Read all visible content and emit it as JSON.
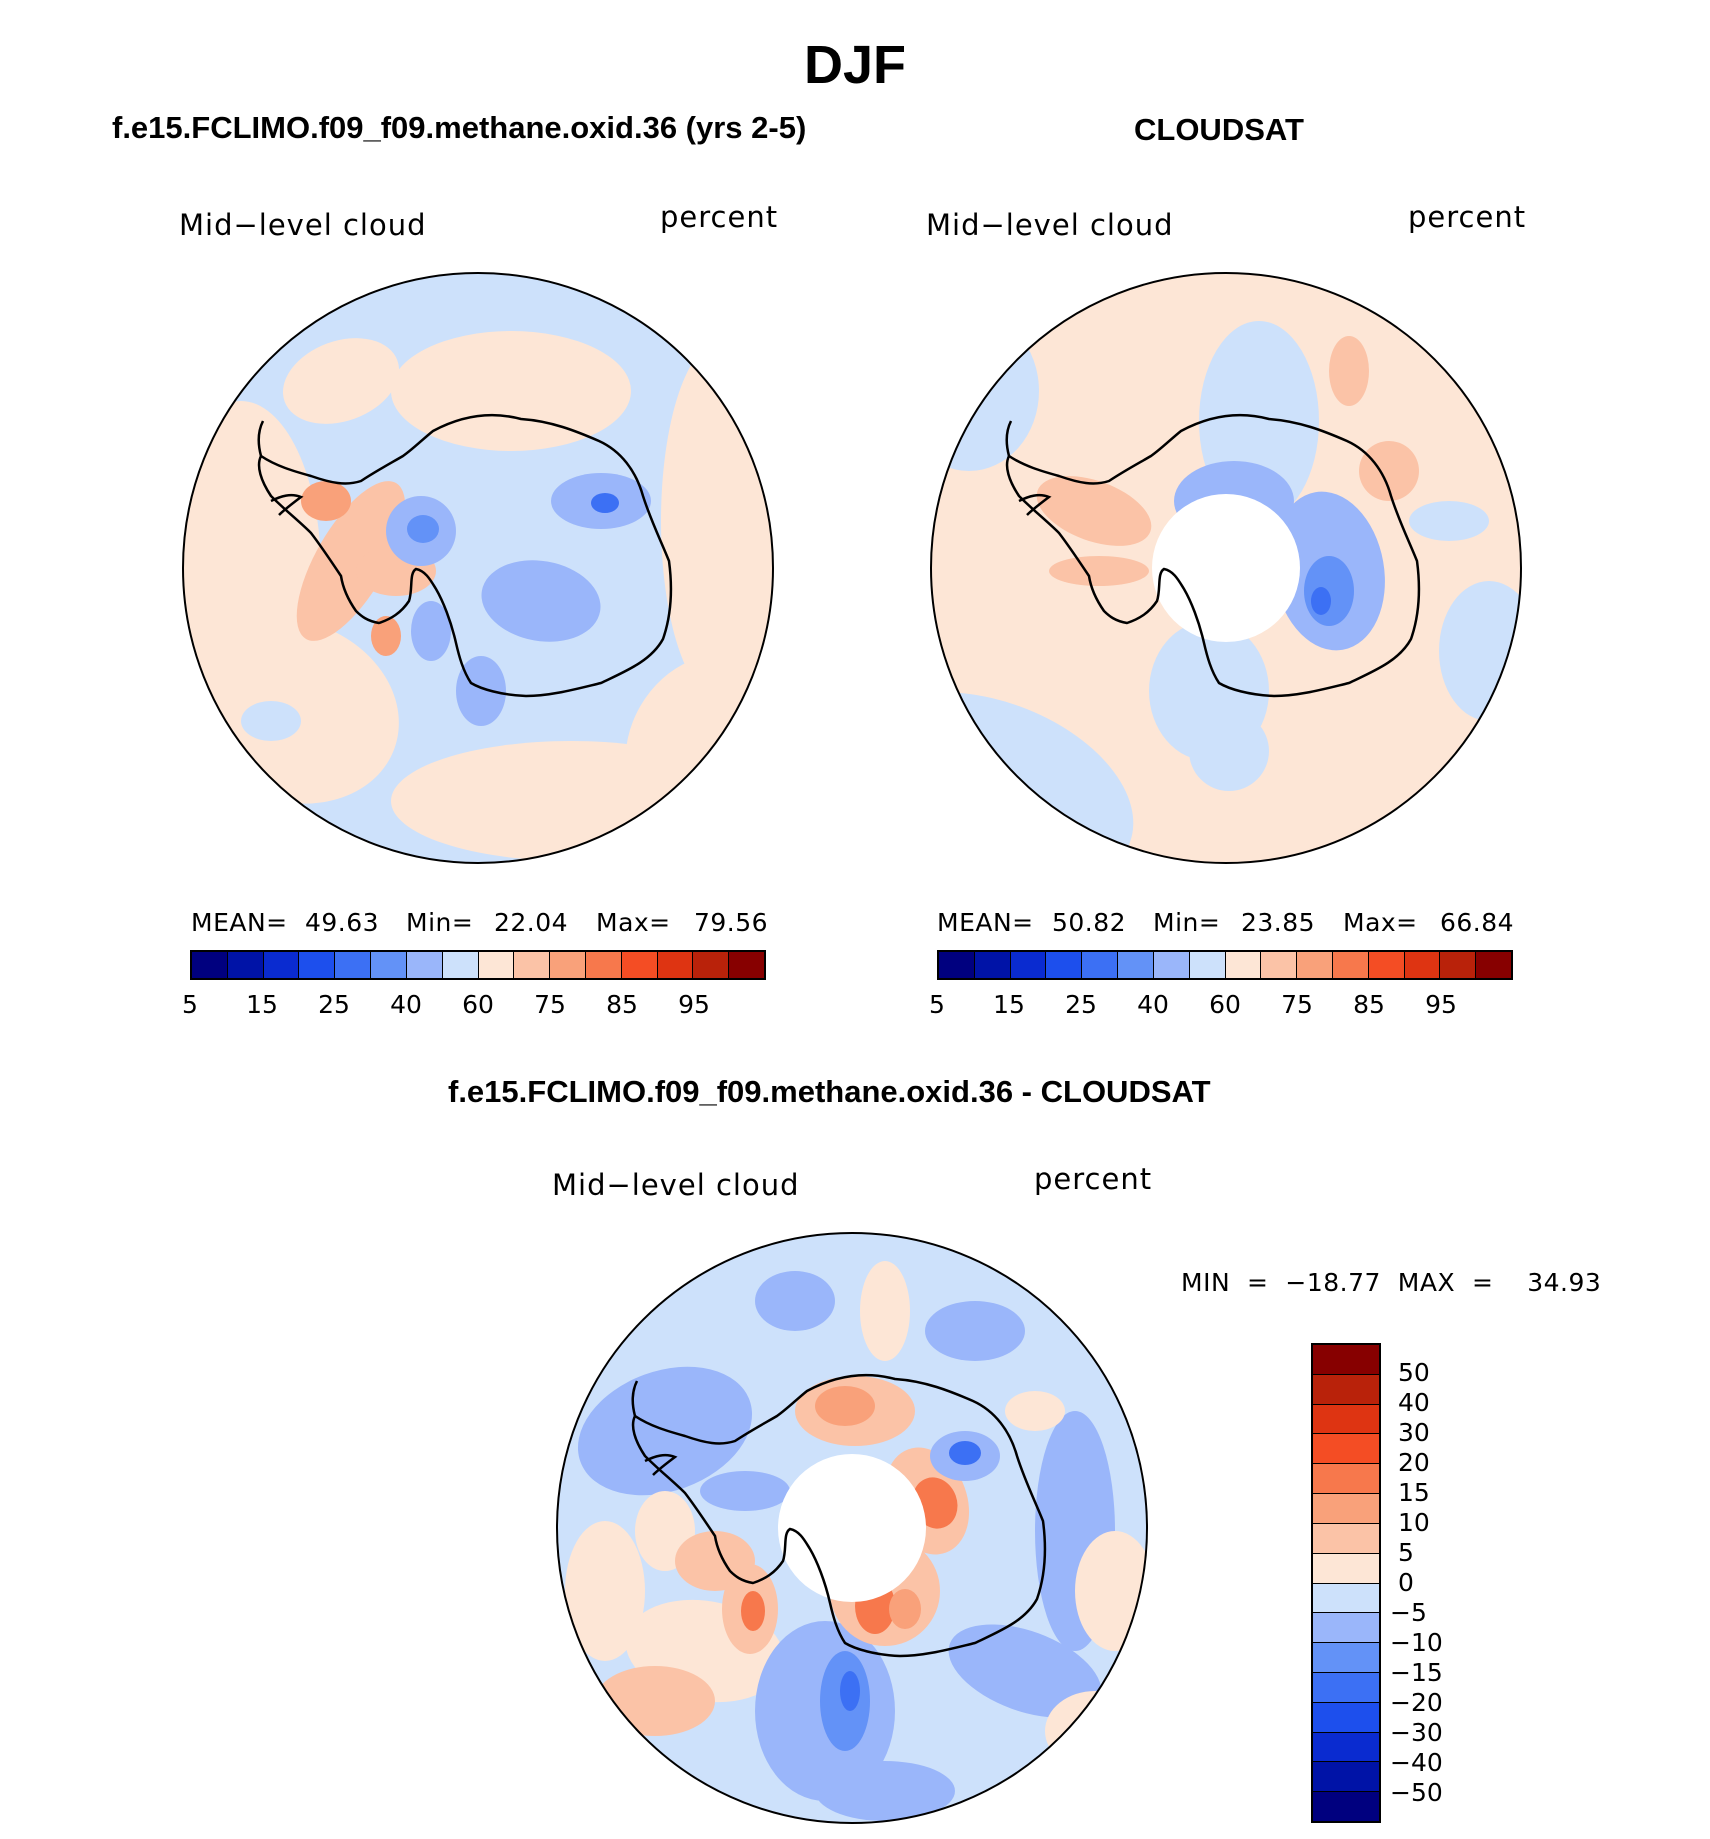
{
  "page_title": "DJF",
  "colors": {
    "abs": [
      "#00007f",
      "#0013a7",
      "#0a2bd0",
      "#1d4fed",
      "#3c70f4",
      "#6392f7",
      "#9ab6fa",
      "#cde1fb",
      "#fde6d6",
      "#fbc3a7",
      "#f9a17a",
      "#f7784c",
      "#f44d24",
      "#de3412",
      "#b9220a",
      "#870000"
    ],
    "diff": [
      "#00007f",
      "#0013a7",
      "#0a2bd0",
      "#1d4fed",
      "#3c70f4",
      "#6392f7",
      "#9ab6fa",
      "#cde1fb",
      "#fde6d6",
      "#fbc3a7",
      "#f9a17a",
      "#f7784c",
      "#f44d24",
      "#de3412",
      "#b9220a",
      "#870000"
    ],
    "land": "#000000"
  },
  "panels": [
    {
      "title": "f.e15.FCLIMO.f09_f09.methane.oxid.36 (yrs 2-5)",
      "left_label": "Mid−level  cloud",
      "right_label": "percent",
      "mean_label": "MEAN=",
      "mean": "49.63",
      "min_label": "Min=",
      "min": "22.04",
      "max_label": "Max=",
      "max": "79.56",
      "ticks": [
        "5",
        "15",
        "25",
        "40",
        "60",
        "75",
        "85",
        "95"
      ],
      "dominant_color_index": 7
    },
    {
      "title": "CLOUDSAT",
      "left_label": "Mid−level  cloud",
      "right_label": "percent",
      "mean_label": "MEAN=",
      "mean": "50.82",
      "min_label": "Min=",
      "min": "23.85",
      "max_label": "Max=",
      "max": "66.84",
      "ticks": [
        "5",
        "15",
        "25",
        "40",
        "60",
        "75",
        "85",
        "95"
      ],
      "dominant_color_index": 8
    }
  ],
  "diff_panel": {
    "title": "f.e15.FCLIMO.f09_f09.methane.oxid.36 - CLOUDSAT",
    "left_label": "Mid−level  cloud",
    "right_label": "percent",
    "minmax_text": "MIN  =  −18.77  MAX  =    34.93",
    "ticks": [
      "50",
      "40",
      "30",
      "20",
      "15",
      "10",
      "5",
      "0",
      "−5",
      "−10",
      "−15",
      "−20",
      "−30",
      "−40",
      "−50"
    ]
  }
}
